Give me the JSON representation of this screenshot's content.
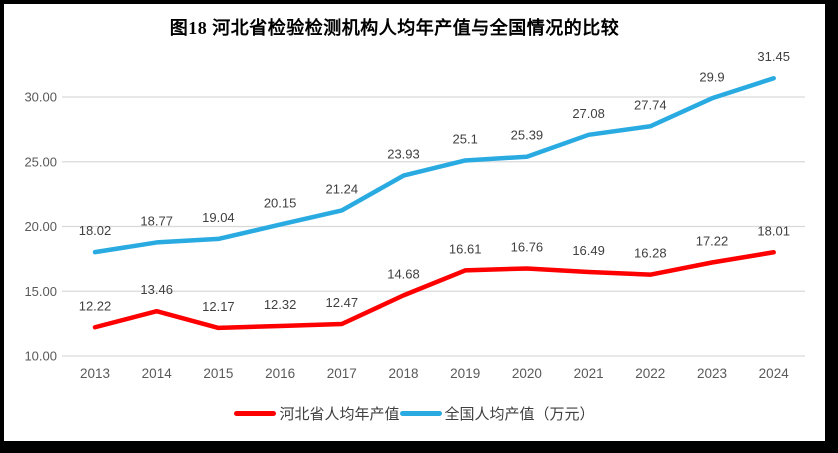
{
  "frame": {
    "border_color": "#000000",
    "background": "#ffffff"
  },
  "chart_data": {
    "type": "line",
    "title": "图18  河北省检验检测机构人均年产值与全国情况的比较",
    "categories": [
      "2013",
      "2014",
      "2015",
      "2016",
      "2017",
      "2018",
      "2019",
      "2020",
      "2021",
      "2022",
      "2023",
      "2024"
    ],
    "series": [
      {
        "name": "河北省人均年产值",
        "color": "#FF0000",
        "values": [
          12.22,
          13.46,
          12.17,
          12.32,
          12.47,
          14.68,
          16.61,
          16.76,
          16.49,
          16.28,
          17.22,
          18.01
        ]
      },
      {
        "name": "全国人均产值（万元）",
        "color": "#29ABE2",
        "values": [
          18.02,
          18.77,
          19.04,
          20.15,
          21.24,
          23.93,
          25.1,
          25.39,
          27.08,
          27.74,
          29.9,
          31.45
        ]
      }
    ],
    "ylim": [
      10,
      30
    ],
    "ytick_step": 5,
    "ytick_labels": [
      "10.00",
      "15.00",
      "20.00",
      "25.00",
      "30.00"
    ],
    "grid": "horizontal",
    "gridline_color": "#D9D9D9",
    "axis_label_color": "#595959",
    "data_label_color": "#404040",
    "legend_position": "bottom",
    "xlabel": "",
    "ylabel": ""
  }
}
